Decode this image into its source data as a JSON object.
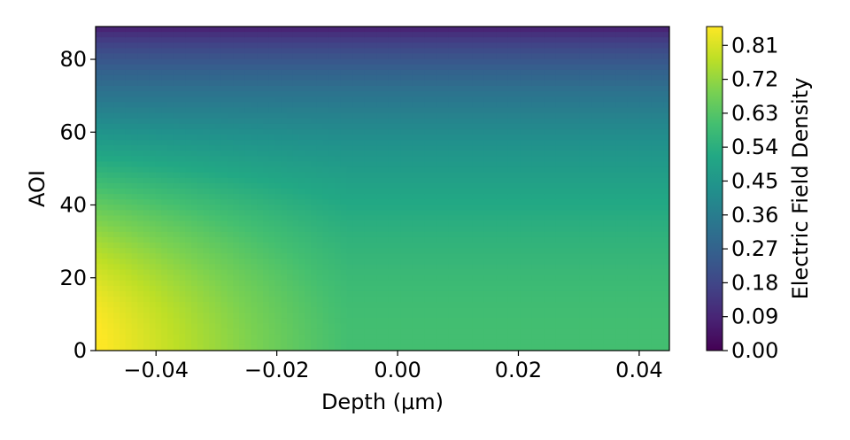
{
  "chart_data": {
    "type": "heatmap",
    "title": "",
    "xlabel": "Depth (μm)",
    "ylabel": "AOI",
    "xlim": [
      -0.05,
      0.045
    ],
    "ylim": [
      0,
      89
    ],
    "x_ticks": [
      -0.04,
      -0.02,
      0.0,
      0.02,
      0.04
    ],
    "x_tick_labels": [
      "−0.04",
      "−0.02",
      "0.00",
      "0.02",
      "0.04"
    ],
    "y_ticks": [
      0,
      20,
      40,
      60,
      80
    ],
    "y_tick_labels": [
      "0",
      "20",
      "40",
      "60",
      "80"
    ],
    "colorbar": {
      "label": "Electric Field Density",
      "colormap": "viridis",
      "range": [
        0.0,
        0.86
      ],
      "ticks": [
        0.0,
        0.09,
        0.18,
        0.27,
        0.36,
        0.45,
        0.54,
        0.63,
        0.72,
        0.81
      ],
      "tick_labels": [
        "0.00",
        "0.09",
        "0.18",
        "0.27",
        "0.36",
        "0.45",
        "0.54",
        "0.63",
        "0.72",
        "0.81"
      ]
    },
    "field_description": "Field density is highest (~0.86) at shallow depth (-0.05 μm) and low AOI, decreasing toward ~0.58 for depth >= -0.01 μm at low AOI; falls to ~0 as AOI approaches 90.",
    "grid": false
  }
}
